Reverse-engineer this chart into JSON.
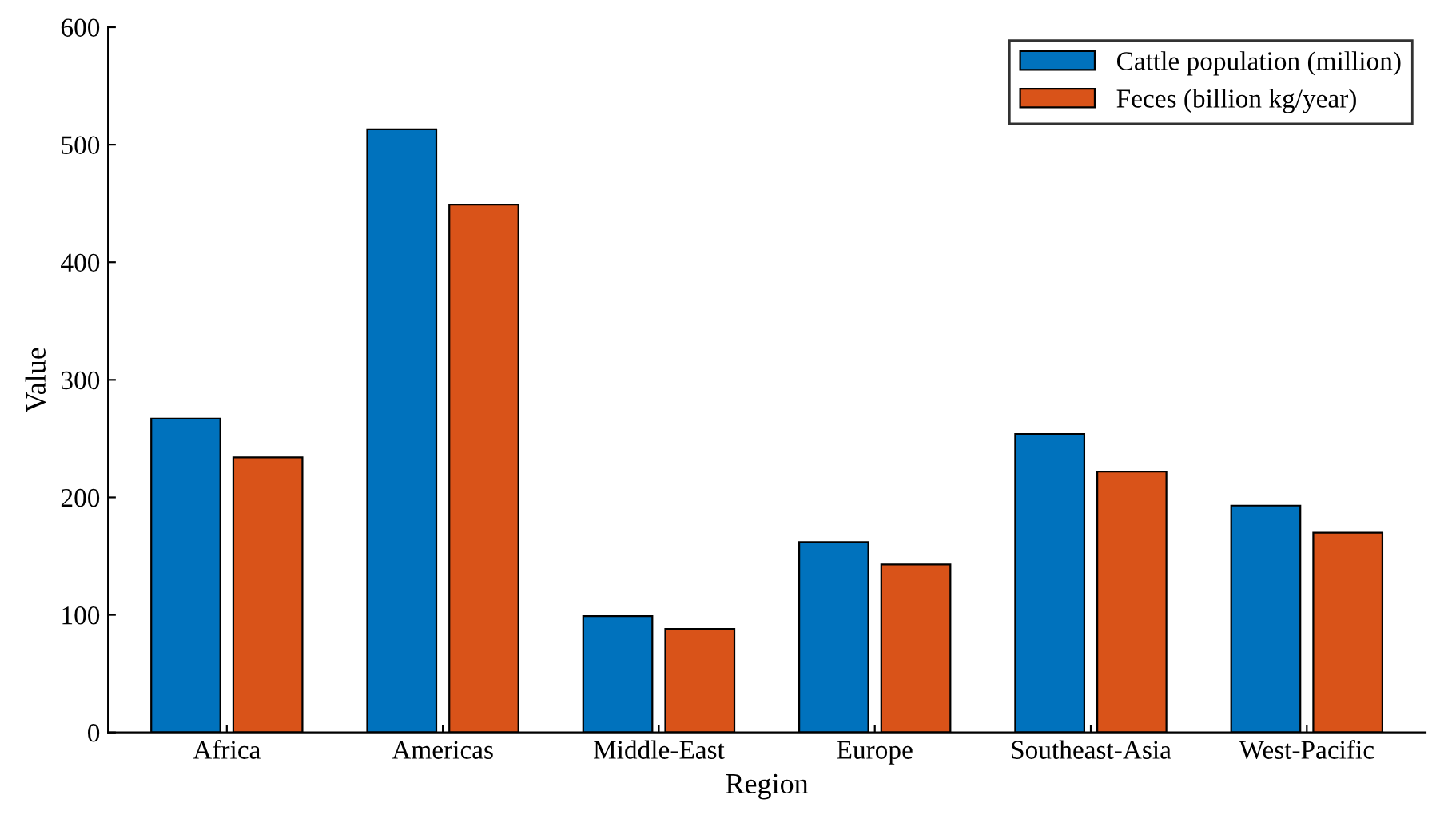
{
  "chart_data": {
    "type": "bar",
    "xlabel": "Region",
    "ylabel": "Value",
    "categories": [
      "Africa",
      "Americas",
      "Middle-East",
      "Europe",
      "Southeast-Asia",
      "West-Pacific"
    ],
    "series": [
      {
        "name": "Cattle population (million)",
        "color": "#0072bd",
        "values": [
          267,
          513,
          99,
          162,
          254,
          193
        ]
      },
      {
        "name": "Feces (billion kg/year)",
        "color": "#d95319",
        "values": [
          234,
          449,
          88,
          143,
          222,
          170
        ]
      }
    ],
    "ylim": [
      0,
      600
    ],
    "yticks": [
      0,
      100,
      200,
      300,
      400,
      500,
      600
    ],
    "grid": false,
    "legend": "top right"
  }
}
